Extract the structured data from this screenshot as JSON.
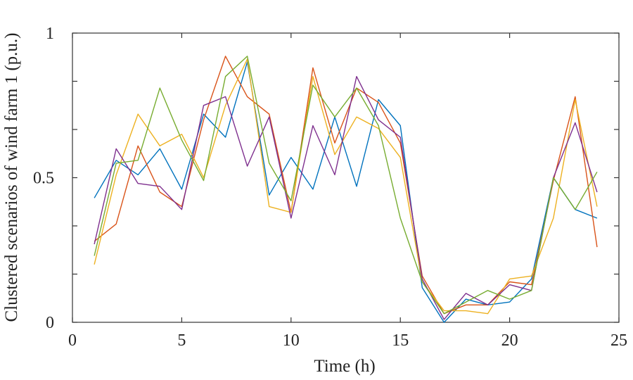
{
  "chart_data": {
    "type": "line",
    "xlabel": "Time (h)",
    "ylabel": "Clustered scenarios of wind farm 1 (p.u.)",
    "xlim": [
      0,
      25
    ],
    "ylim": [
      0,
      1
    ],
    "xticks": [
      0,
      5,
      10,
      15,
      20,
      25
    ],
    "yticks": [
      0,
      0.5,
      1
    ],
    "ytick_labels": [
      "0",
      "0.5",
      "1"
    ],
    "grid": false,
    "legend": "none",
    "x": [
      1,
      2,
      3,
      4,
      5,
      6,
      7,
      8,
      9,
      10,
      11,
      12,
      13,
      14,
      15,
      16,
      17,
      18,
      19,
      20,
      21,
      22,
      23,
      24
    ],
    "series": [
      {
        "color": "#0072BD",
        "values": [
          0.43,
          0.56,
          0.51,
          0.6,
          0.46,
          0.72,
          0.64,
          0.9,
          0.44,
          0.57,
          0.46,
          0.71,
          0.47,
          0.77,
          0.68,
          0.12,
          0.0,
          0.08,
          0.06,
          0.07,
          0.15,
          0.5,
          0.39,
          0.36
        ]
      },
      {
        "color": "#D95319",
        "values": [
          0.28,
          0.34,
          0.61,
          0.45,
          0.4,
          0.7,
          0.92,
          0.78,
          0.72,
          0.38,
          0.88,
          0.62,
          0.81,
          0.76,
          0.62,
          0.16,
          0.03,
          0.06,
          0.06,
          0.14,
          0.13,
          0.49,
          0.78,
          0.26
        ]
      },
      {
        "color": "#EDB120",
        "values": [
          0.2,
          0.51,
          0.72,
          0.61,
          0.65,
          0.5,
          0.75,
          0.91,
          0.4,
          0.38,
          0.85,
          0.58,
          0.71,
          0.67,
          0.57,
          0.14,
          0.04,
          0.04,
          0.03,
          0.15,
          0.16,
          0.36,
          0.77,
          0.4
        ]
      },
      {
        "color": "#7E2F8E",
        "values": [
          0.27,
          0.6,
          0.48,
          0.47,
          0.39,
          0.75,
          0.78,
          0.54,
          0.71,
          0.36,
          0.68,
          0.51,
          0.85,
          0.7,
          0.64,
          0.15,
          0.01,
          0.1,
          0.06,
          0.13,
          0.11,
          0.5,
          0.69,
          0.45
        ]
      },
      {
        "color": "#77AC30",
        "values": [
          0.23,
          0.55,
          0.56,
          0.81,
          0.63,
          0.49,
          0.85,
          0.92,
          0.55,
          0.42,
          0.82,
          0.71,
          0.81,
          0.68,
          0.36,
          0.14,
          0.03,
          0.07,
          0.11,
          0.08,
          0.11,
          0.5,
          0.39,
          0.52
        ]
      }
    ]
  }
}
